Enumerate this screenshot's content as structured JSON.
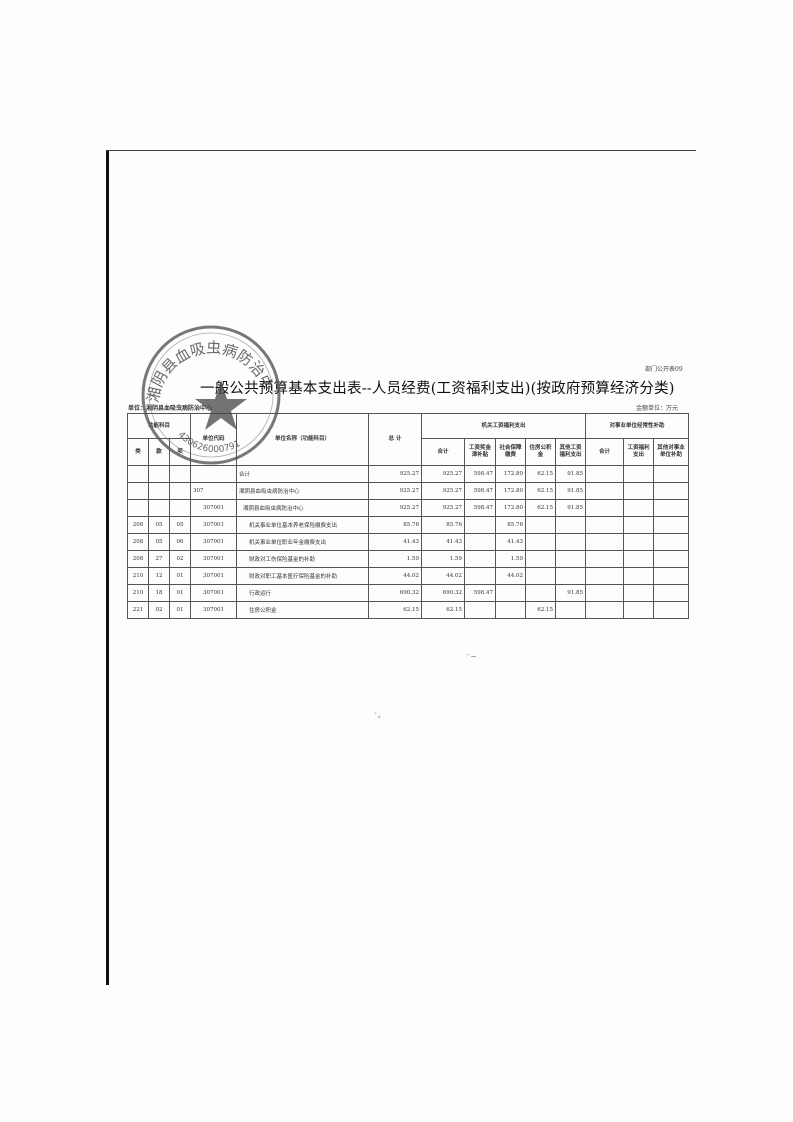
{
  "form_code": "部门公开表09",
  "title": "一般公共预算基本支出表--人员经费(工资福利支出)(按政府预算经济分类)",
  "unit_label": "单位：湘阴县血吸虫病防治中心",
  "money_unit": "金额单位：万元",
  "headers": {
    "func_subject": "功能科目",
    "lei": "类",
    "kuan": "款",
    "xiang": "项",
    "unit_code": "单位代码",
    "unit_name": "单位名称（功能科目）",
    "total": "总 计",
    "group1": "机关工资福利支出",
    "g1_total": "合计",
    "g1_wage": "工资奖金津补贴",
    "g1_social": "社会保障缴费",
    "g1_housing": "住房公积金",
    "g1_other": "其他工资福利支出",
    "group2": "对事业单位经常性补助",
    "g2_total": "合计",
    "g2_wage": "工资福利支出",
    "g2_other": "其他对事业单位补助"
  },
  "rows": [
    {
      "lei": "",
      "kuan": "",
      "xiang": "",
      "code": "",
      "name": "合计",
      "total": "925.27",
      "g1_total": "925.27",
      "wage": "598.47",
      "social": "172.80",
      "housing": "62.15",
      "other": "91.85"
    },
    {
      "lei": "",
      "kuan": "",
      "xiang": "",
      "code": "307",
      "name": "湘阴县血吸虫病防治中心",
      "total": "925.27",
      "g1_total": "925.27",
      "wage": "598.47",
      "social": "172.80",
      "housing": "62.15",
      "other": "91.85"
    },
    {
      "lei": "",
      "kuan": "",
      "xiang": "",
      "code": "307001",
      "name": "湘阴县血吸虫病防治中心",
      "total": "925.27",
      "g1_total": "925.27",
      "wage": "598.47",
      "social": "172.80",
      "housing": "62.15",
      "other": "91.85"
    },
    {
      "lei": "208",
      "kuan": "05",
      "xiang": "05",
      "code": "307001",
      "name": "机关事业单位基本养老保险缴费支出",
      "total": "85.76",
      "g1_total": "85.76",
      "wage": "",
      "social": "85.76",
      "housing": "",
      "other": ""
    },
    {
      "lei": "208",
      "kuan": "05",
      "xiang": "06",
      "code": "307001",
      "name": "机关事业单位职业年金缴费支出",
      "total": "41.43",
      "g1_total": "41.43",
      "wage": "",
      "social": "41.43",
      "housing": "",
      "other": ""
    },
    {
      "lei": "208",
      "kuan": "27",
      "xiang": "02",
      "code": "307001",
      "name": "财政对工伤保险基金的补助",
      "total": "1.59",
      "g1_total": "1.59",
      "wage": "",
      "social": "1.59",
      "housing": "",
      "other": ""
    },
    {
      "lei": "210",
      "kuan": "12",
      "xiang": "01",
      "code": "307001",
      "name": "财政对职工基本医疗保险基金的补助",
      "total": "44.02",
      "g1_total": "44.02",
      "wage": "",
      "social": "44.02",
      "housing": "",
      "other": ""
    },
    {
      "lei": "210",
      "kuan": "18",
      "xiang": "01",
      "code": "307001",
      "name": "行政运行",
      "total": "690.32",
      "g1_total": "690.32",
      "wage": "598.47",
      "social": "",
      "housing": "",
      "other": "91.85"
    },
    {
      "lei": "221",
      "kuan": "02",
      "xiang": "01",
      "code": "307001",
      "name": "住房公积金",
      "total": "62.15",
      "g1_total": "62.15",
      "wage": "",
      "social": "",
      "housing": "62.15",
      "other": ""
    }
  ],
  "stamp": {
    "text": "湘阴县血吸虫病防治中心",
    "number": "430626000791",
    "color": "#555555"
  }
}
